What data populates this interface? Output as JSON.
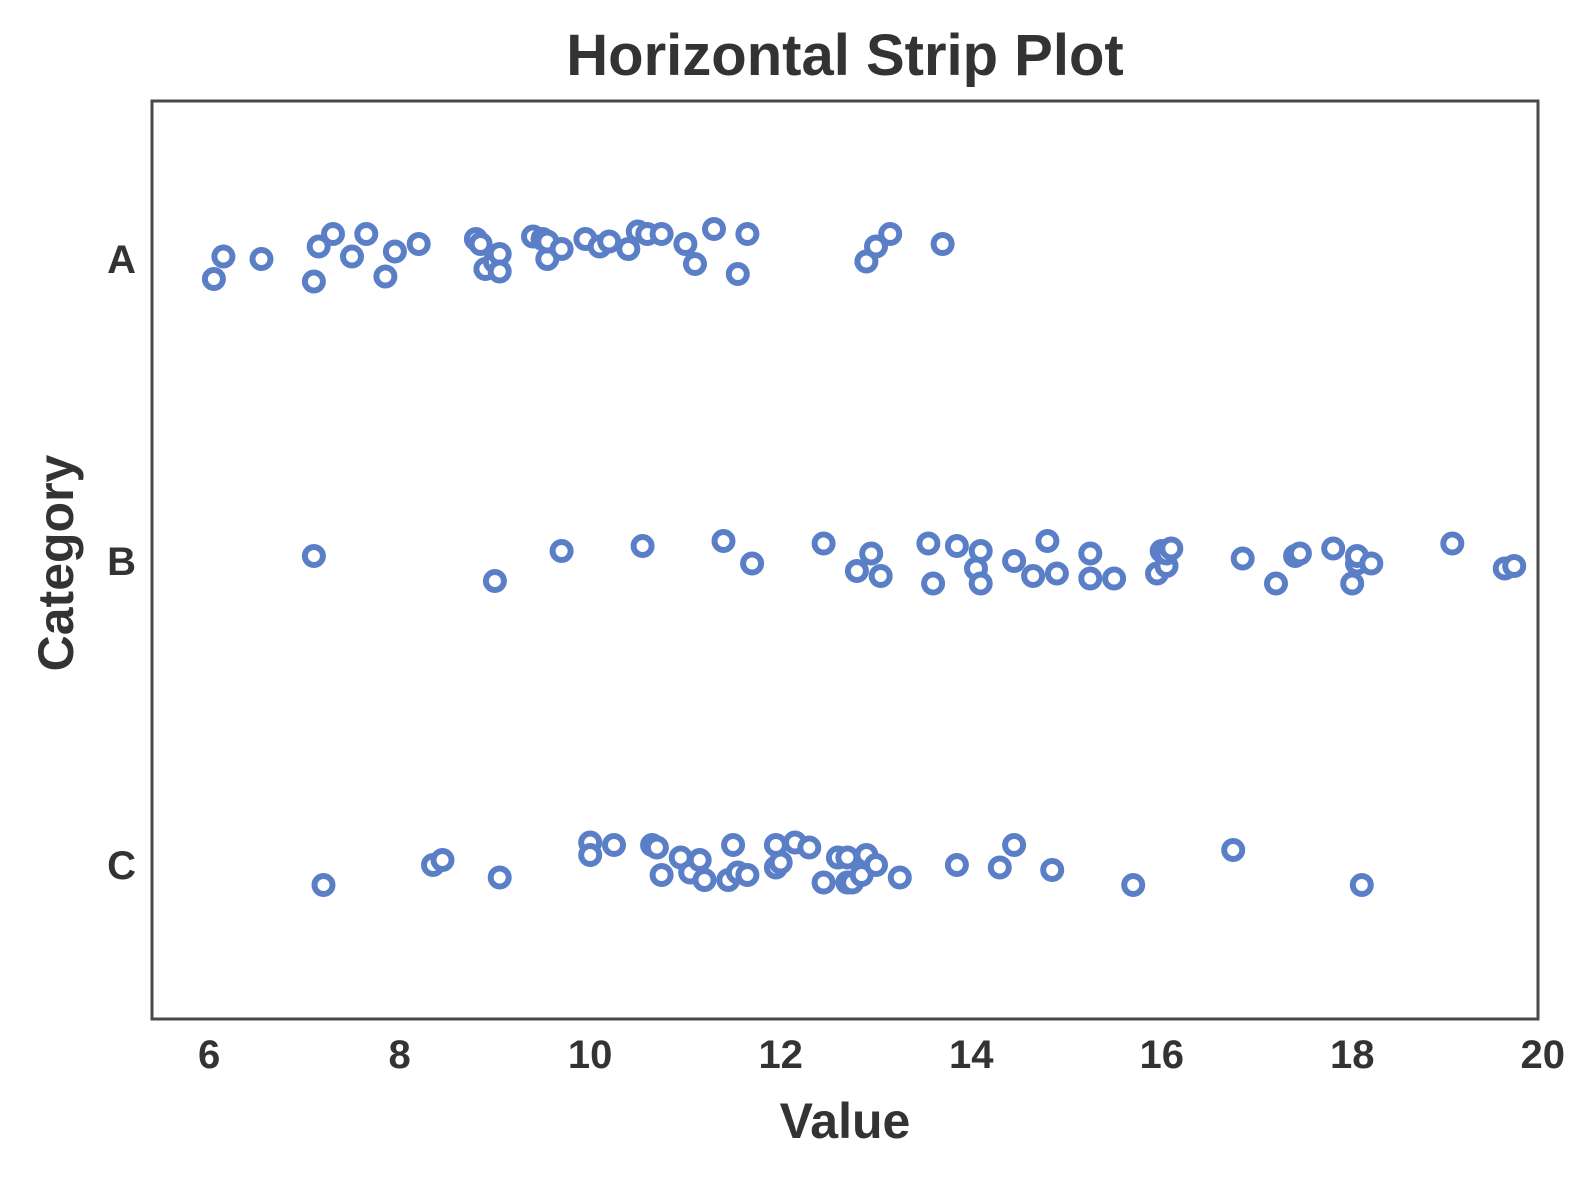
{
  "chart_data": {
    "type": "scatter",
    "title": "Horizontal Strip Plot",
    "xlabel": "Value",
    "ylabel": "Category",
    "xlim": [
      5.4,
      19.95
    ],
    "xticks": [
      6,
      8,
      10,
      12,
      14,
      16,
      18,
      20
    ],
    "categories": [
      "A",
      "B",
      "C"
    ],
    "grid": false,
    "point_color": "#5b7fc7",
    "series": [
      {
        "category": "A",
        "points": [
          [
            6.05,
            0.08
          ],
          [
            6.15,
            -0.01
          ],
          [
            6.55,
            0.0
          ],
          [
            7.1,
            0.09
          ],
          [
            7.15,
            -0.05
          ],
          [
            7.3,
            -0.1
          ],
          [
            7.5,
            -0.01
          ],
          [
            7.65,
            -0.1
          ],
          [
            7.85,
            0.07
          ],
          [
            7.95,
            -0.03
          ],
          [
            8.2,
            -0.06
          ],
          [
            8.8,
            -0.08
          ],
          [
            8.85,
            -0.06
          ],
          [
            8.9,
            0.04
          ],
          [
            9.0,
            0.01
          ],
          [
            9.05,
            -0.02
          ],
          [
            9.05,
            0.05
          ],
          [
            9.4,
            -0.09
          ],
          [
            9.5,
            -0.08
          ],
          [
            9.55,
            0.0
          ],
          [
            9.55,
            -0.07
          ],
          [
            9.7,
            -0.04
          ],
          [
            9.95,
            -0.08
          ],
          [
            10.1,
            -0.05
          ],
          [
            10.2,
            -0.07
          ],
          [
            10.4,
            -0.04
          ],
          [
            10.5,
            -0.11
          ],
          [
            10.6,
            -0.1
          ],
          [
            10.75,
            -0.1
          ],
          [
            11.0,
            -0.06
          ],
          [
            11.1,
            0.02
          ],
          [
            11.3,
            -0.12
          ],
          [
            11.55,
            0.06
          ],
          [
            11.65,
            -0.1
          ],
          [
            12.9,
            0.01
          ],
          [
            13.0,
            -0.05
          ],
          [
            13.15,
            -0.1
          ],
          [
            13.7,
            -0.06
          ]
        ]
      },
      {
        "category": "B",
        "points": [
          [
            7.1,
            -0.02
          ],
          [
            9.0,
            0.08
          ],
          [
            9.7,
            -0.04
          ],
          [
            10.55,
            -0.06
          ],
          [
            11.4,
            -0.08
          ],
          [
            11.7,
            0.01
          ],
          [
            12.45,
            -0.07
          ],
          [
            12.8,
            0.04
          ],
          [
            12.95,
            -0.03
          ],
          [
            13.05,
            0.06
          ],
          [
            13.55,
            -0.07
          ],
          [
            13.6,
            0.09
          ],
          [
            13.85,
            -0.06
          ],
          [
            14.05,
            0.03
          ],
          [
            14.1,
            -0.04
          ],
          [
            14.1,
            0.09
          ],
          [
            14.45,
            0.0
          ],
          [
            14.65,
            0.06
          ],
          [
            14.8,
            -0.08
          ],
          [
            14.9,
            0.05
          ],
          [
            15.25,
            -0.03
          ],
          [
            15.25,
            0.07
          ],
          [
            15.5,
            0.07
          ],
          [
            15.95,
            0.05
          ],
          [
            16.0,
            -0.04
          ],
          [
            16.05,
            0.02
          ],
          [
            16.05,
            -0.03
          ],
          [
            16.1,
            -0.05
          ],
          [
            16.85,
            -0.01
          ],
          [
            17.2,
            0.09
          ],
          [
            17.4,
            -0.02
          ],
          [
            17.45,
            -0.03
          ],
          [
            17.8,
            -0.05
          ],
          [
            18.0,
            0.09
          ],
          [
            18.05,
            0.01
          ],
          [
            18.05,
            -0.02
          ],
          [
            18.2,
            0.01
          ],
          [
            19.05,
            -0.07
          ],
          [
            19.6,
            0.03
          ],
          [
            19.7,
            0.02
          ]
        ]
      },
      {
        "category": "C",
        "points": [
          [
            7.2,
            0.08
          ],
          [
            8.35,
            0.0
          ],
          [
            8.45,
            -0.02
          ],
          [
            9.05,
            0.05
          ],
          [
            10.0,
            -0.09
          ],
          [
            10.0,
            -0.04
          ],
          [
            10.25,
            -0.08
          ],
          [
            10.65,
            -0.08
          ],
          [
            10.7,
            -0.07
          ],
          [
            10.75,
            0.04
          ],
          [
            10.95,
            -0.03
          ],
          [
            11.05,
            0.03
          ],
          [
            11.15,
            -0.02
          ],
          [
            11.2,
            0.06
          ],
          [
            11.45,
            0.06
          ],
          [
            11.5,
            -0.08
          ],
          [
            11.55,
            0.03
          ],
          [
            11.65,
            0.04
          ],
          [
            11.95,
            -0.08
          ],
          [
            11.95,
            0.01
          ],
          [
            12.0,
            -0.01
          ],
          [
            12.15,
            -0.09
          ],
          [
            12.3,
            -0.07
          ],
          [
            12.45,
            0.07
          ],
          [
            12.6,
            -0.03
          ],
          [
            12.7,
            -0.03
          ],
          [
            12.7,
            0.07
          ],
          [
            12.75,
            0.07
          ],
          [
            12.85,
            0.04
          ],
          [
            12.9,
            -0.04
          ],
          [
            13.0,
            0.0
          ],
          [
            13.25,
            0.05
          ],
          [
            13.85,
            0.0
          ],
          [
            14.3,
            0.01
          ],
          [
            14.45,
            -0.08
          ],
          [
            14.85,
            0.02
          ],
          [
            15.7,
            0.08
          ],
          [
            16.75,
            -0.06
          ],
          [
            18.1,
            0.08
          ]
        ]
      }
    ]
  }
}
